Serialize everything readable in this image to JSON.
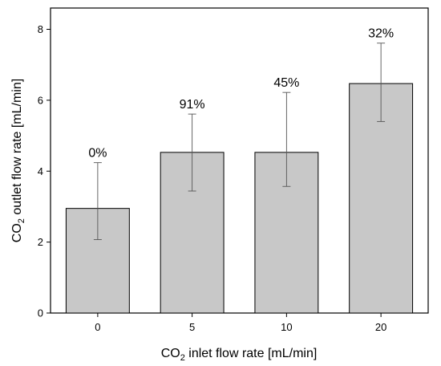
{
  "chart_data": {
    "type": "bar",
    "categories": [
      "0",
      "5",
      "10",
      "20"
    ],
    "values": [
      2.95,
      4.53,
      4.53,
      6.47
    ],
    "error_low": [
      2.07,
      3.44,
      3.57,
      5.4
    ],
    "error_high": [
      4.24,
      5.61,
      6.22,
      7.61
    ],
    "data_labels": [
      "0%",
      "91%",
      "45%",
      "32%"
    ],
    "xlabel": {
      "main": "CO",
      "sub": "2",
      "rest": " inlet flow rate [mL/min]"
    },
    "ylabel": {
      "main": "CO",
      "sub": "2",
      "rest": " outlet flow rate [mL/min]"
    },
    "ylim": [
      0,
      8.6
    ],
    "yticks": [
      0,
      2,
      4,
      6,
      8
    ],
    "grid": false,
    "bar_color": "#c8c8c8"
  }
}
